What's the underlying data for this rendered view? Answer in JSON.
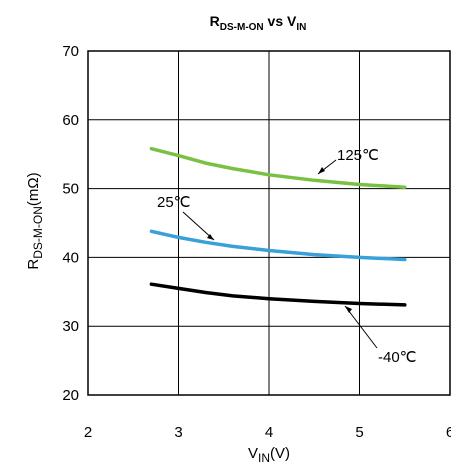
{
  "chart_data": {
    "type": "line",
    "title": {
      "main": "R",
      "sub": "DS-M-ON",
      "mid": " vs V",
      "sub2": "IN"
    },
    "xlabel": {
      "main": "V",
      "sub": "IN",
      "tail": "(V)"
    },
    "ylabel": {
      "main": "R",
      "sub": "DS-M-ON",
      "tail": "(mΩ)"
    },
    "xlim": [
      2,
      6
    ],
    "ylim": [
      20,
      70
    ],
    "x_ticks": [
      "2",
      "3",
      "4",
      "5",
      "6"
    ],
    "y_ticks": [
      "20",
      "30",
      "40",
      "50",
      "60",
      "70"
    ],
    "grid": true,
    "series": [
      {
        "name": "125℃",
        "color": "#7ac143",
        "x": [
          2.7,
          3.0,
          3.3,
          3.6,
          4.0,
          4.5,
          5.0,
          5.5
        ],
        "y": [
          55.8,
          54.8,
          53.7,
          52.9,
          52.0,
          51.2,
          50.6,
          50.2
        ]
      },
      {
        "name": "25℃",
        "color": "#3aa0d8",
        "x": [
          2.7,
          3.0,
          3.3,
          3.6,
          4.0,
          4.5,
          5.0,
          5.5
        ],
        "y": [
          43.8,
          42.9,
          42.2,
          41.6,
          41.0,
          40.4,
          40.0,
          39.7
        ]
      },
      {
        "name": "-40℃",
        "color": "#000000",
        "x": [
          2.7,
          3.0,
          3.3,
          3.6,
          4.0,
          4.5,
          5.0,
          5.5
        ],
        "y": [
          36.1,
          35.5,
          34.9,
          34.4,
          34.0,
          33.6,
          33.3,
          33.1
        ]
      }
    ]
  }
}
